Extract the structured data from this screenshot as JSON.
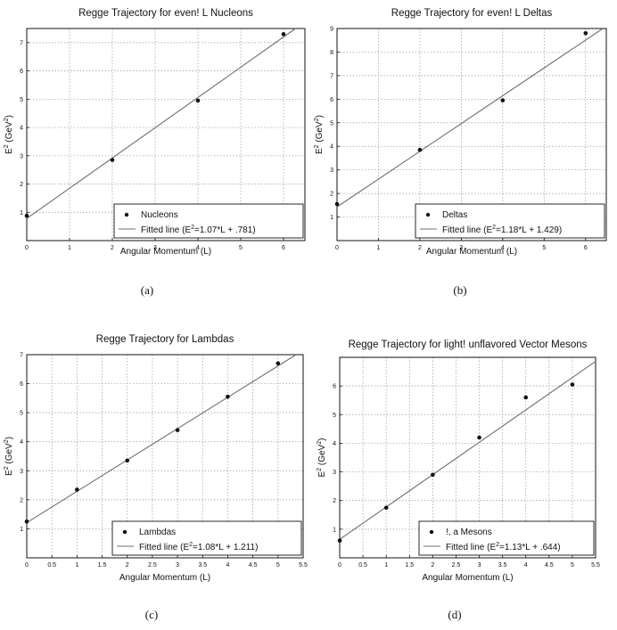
{
  "chart_data": [
    {
      "panel": "(a)",
      "type": "scatter",
      "title": "Regge Trajectory for even! L Nucleons",
      "xlabel": "Angular Momentum (L)",
      "ylabel_base": "E",
      "ylabel_tail": " (GeV",
      "ylabel_close": ")",
      "xlim": [
        0,
        6.5
      ],
      "ylim": [
        0,
        7.5
      ],
      "xticks": [
        0,
        1,
        2,
        3,
        4,
        5,
        6
      ],
      "yticks": [
        1,
        2,
        3,
        4,
        5,
        6,
        7
      ],
      "grid": true,
      "legend_position": "bottom-right",
      "series": [
        {
          "name": "Nucleons",
          "kind": "points",
          "x": [
            0,
            2,
            4,
            6
          ],
          "y": [
            0.88,
            2.85,
            4.95,
            7.3
          ]
        },
        {
          "name": "Fitted line (E",
          "name_tail": "=1.07*L + .781)",
          "kind": "line",
          "slope": 1.07,
          "intercept": 0.781
        }
      ]
    },
    {
      "panel": "(b)",
      "type": "scatter",
      "title": "Regge Trajectory for even! L Deltas",
      "xlabel": "Angular Momentum (L)",
      "ylabel_base": "E",
      "ylabel_tail": " (GeV",
      "ylabel_close": ")",
      "xlim": [
        0,
        6.5
      ],
      "ylim": [
        0,
        9
      ],
      "xticks": [
        0,
        1,
        2,
        3,
        4,
        5,
        6
      ],
      "yticks": [
        1,
        2,
        3,
        4,
        5,
        6,
        7,
        8,
        9
      ],
      "grid": true,
      "legend_position": "bottom-right",
      "series": [
        {
          "name": "Deltas",
          "kind": "points",
          "x": [
            0,
            2,
            4,
            6
          ],
          "y": [
            1.55,
            3.85,
            5.95,
            8.8
          ]
        },
        {
          "name": "Fitted line (E",
          "name_tail": "=1.18*L + 1.429)",
          "kind": "line",
          "slope": 1.18,
          "intercept": 1.429
        }
      ]
    },
    {
      "panel": "(c)",
      "type": "scatter",
      "title": "Regge Trajectory for Lambdas",
      "xlabel": "Angular Momentum (L)",
      "ylabel_base": "E",
      "ylabel_tail": " (GeV",
      "ylabel_close": ")",
      "xlim": [
        0,
        5.5
      ],
      "ylim": [
        0,
        7
      ],
      "xticks": [
        0,
        0.5,
        1,
        1.5,
        2,
        2.5,
        3,
        3.5,
        4,
        4.5,
        5,
        5.5
      ],
      "yticks": [
        1,
        2,
        3,
        4,
        5,
        6,
        7
      ],
      "grid": true,
      "legend_position": "bottom-right",
      "series": [
        {
          "name": "Lambdas",
          "kind": "points",
          "x": [
            0,
            1,
            2,
            3,
            4,
            5
          ],
          "y": [
            1.25,
            2.35,
            3.35,
            4.4,
            5.55,
            6.7
          ]
        },
        {
          "name": "Fitted line (E",
          "name_tail": "=1.08*L + 1.211)",
          "kind": "line",
          "slope": 1.08,
          "intercept": 1.211
        }
      ]
    },
    {
      "panel": "(d)",
      "type": "scatter",
      "title": "Regge Trajectory for light! unflavored Vector Mesons",
      "xlabel": "Angular Momentum (L)",
      "ylabel_base": "E",
      "ylabel_tail": " (GeV",
      "ylabel_close": ")",
      "xlim": [
        0,
        5.5
      ],
      "ylim": [
        0,
        7
      ],
      "xticks": [
        0,
        0.5,
        1,
        1.5,
        2,
        2.5,
        3,
        3.5,
        4,
        4.5,
        5,
        5.5
      ],
      "yticks": [
        1,
        2,
        3,
        4,
        5,
        6
      ],
      "grid": true,
      "legend_position": "bottom-right",
      "series": [
        {
          "name": "!, a  Mesons",
          "kind": "points",
          "x": [
            0,
            1,
            2,
            3,
            4,
            5
          ],
          "y": [
            0.6,
            1.75,
            2.9,
            4.2,
            5.6,
            6.05
          ]
        },
        {
          "name": "Fitted line (E",
          "name_tail": "=1.13*L + .644)",
          "kind": "line",
          "slope": 1.13,
          "intercept": 0.644
        }
      ]
    }
  ],
  "superscript": "2"
}
